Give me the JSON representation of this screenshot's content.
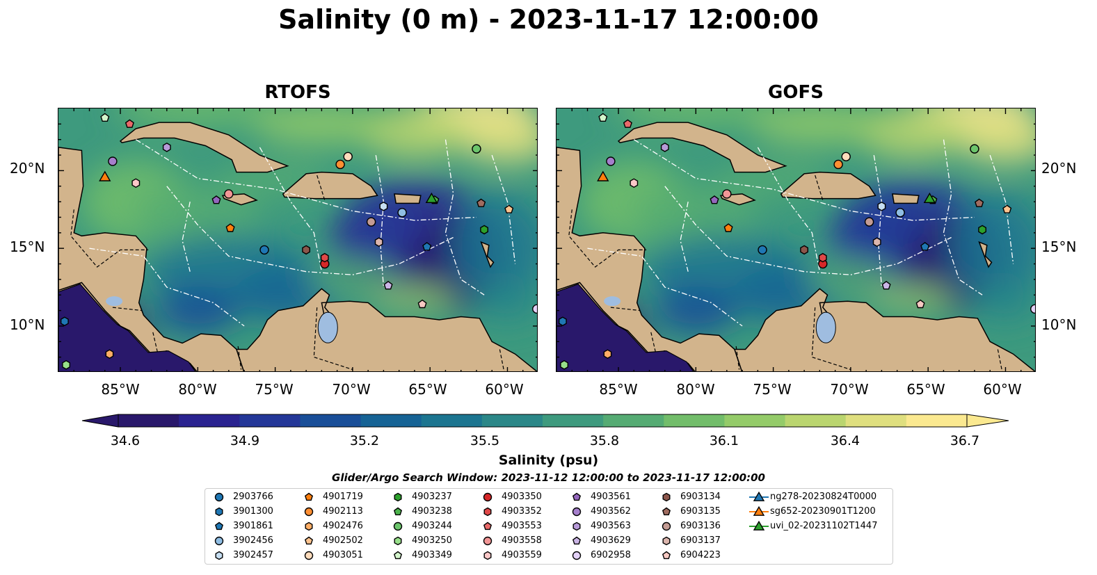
{
  "title": "Salinity (0 m) - 2023-11-17 12:00:00",
  "panels": [
    {
      "title": "RTOFS"
    },
    {
      "title": "GOFS"
    }
  ],
  "map_extent": {
    "lon": [
      -89,
      -58
    ],
    "lat": [
      7,
      24
    ]
  },
  "lat_labels": [
    "20°N",
    "15°N",
    "10°N"
  ],
  "lon_labels": [
    "85°W",
    "80°W",
    "75°W",
    "70°W",
    "65°W",
    "60°W"
  ],
  "colorbar": {
    "label": "Salinity (psu)",
    "min": 34.5,
    "max": 36.8,
    "ticks": [
      "34.6",
      "34.9",
      "35.2",
      "35.5",
      "35.8",
      "36.1",
      "36.4",
      "36.7"
    ],
    "colors": [
      "#29186b",
      "#2a2390",
      "#243798",
      "#194e98",
      "#166395",
      "#1c7590",
      "#2b8788",
      "#3e9a7e",
      "#55ab73",
      "#72bd6a",
      "#94cb69",
      "#bad56f",
      "#dfdf7f",
      "#fbe990"
    ]
  },
  "search_window": "Glider/Argo Search Window: 2023-11-12 12:00:00 to 2023-11-17 12:00:00",
  "land_color": "#d2b48c",
  "legend": [
    {
      "label": "2903766",
      "color": "#1f77b4",
      "marker": "circle"
    },
    {
      "label": "3901300",
      "color": "#1f77b4",
      "marker": "hexagon"
    },
    {
      "label": "3901861",
      "color": "#1f77b4",
      "marker": "pentagon"
    },
    {
      "label": "3902456",
      "color": "#8fbde3",
      "marker": "circle"
    },
    {
      "label": "3902457",
      "color": "#c6def2",
      "marker": "hexagon"
    },
    {
      "label": "4901719",
      "color": "#ff7f0e",
      "marker": "pentagon"
    },
    {
      "label": "4902113",
      "color": "#ff8f33",
      "marker": "circle"
    },
    {
      "label": "4902476",
      "color": "#ffae66",
      "marker": "hexagon"
    },
    {
      "label": "4902502",
      "color": "#ffc48f",
      "marker": "pentagon"
    },
    {
      "label": "4903051",
      "color": "#ffdcbc",
      "marker": "circle"
    },
    {
      "label": "4903237",
      "color": "#2ca02c",
      "marker": "hexagon"
    },
    {
      "label": "4903238",
      "color": "#4cb34c",
      "marker": "pentagon"
    },
    {
      "label": "4903244",
      "color": "#6cc56c",
      "marker": "circle"
    },
    {
      "label": "4903250",
      "color": "#98df8a",
      "marker": "hexagon"
    },
    {
      "label": "4903349",
      "color": "#d4f5cc",
      "marker": "pentagon"
    },
    {
      "label": "4903350",
      "color": "#d62728",
      "marker": "circle"
    },
    {
      "label": "4903352",
      "color": "#e04848",
      "marker": "hexagon"
    },
    {
      "label": "4903553",
      "color": "#ea6a6a",
      "marker": "pentagon"
    },
    {
      "label": "4903558",
      "color": "#f29696",
      "marker": "circle"
    },
    {
      "label": "4903559",
      "color": "#fcc8c8",
      "marker": "hexagon"
    },
    {
      "label": "4903561",
      "color": "#9467bd",
      "marker": "pentagon"
    },
    {
      "label": "4903562",
      "color": "#a57fcc",
      "marker": "circle"
    },
    {
      "label": "4903563",
      "color": "#b79ad8",
      "marker": "hexagon"
    },
    {
      "label": "4903629",
      "color": "#cbb5e6",
      "marker": "pentagon"
    },
    {
      "label": "6902958",
      "color": "#e4d2f8",
      "marker": "circle"
    },
    {
      "label": "6903134",
      "color": "#8c564b",
      "marker": "hexagon"
    },
    {
      "label": "6903135",
      "color": "#a06c60",
      "marker": "pentagon"
    },
    {
      "label": "6903136",
      "color": "#c49c94",
      "marker": "circle"
    },
    {
      "label": "6903137",
      "color": "#dbb5ad",
      "marker": "hexagon"
    },
    {
      "label": "6904223",
      "color": "#f7c9c2",
      "marker": "pentagon"
    },
    {
      "label": "ng278-20230824T0000",
      "color": "#1f77b4",
      "marker": "triangle"
    },
    {
      "label": "sg652-20230901T1200",
      "color": "#ff7f0e",
      "marker": "triangle"
    },
    {
      "label": "uvi_02-20231102T1447",
      "color": "#2ca02c",
      "marker": "triangle"
    }
  ],
  "observations": [
    {
      "id": "2903766",
      "lon": -75.7,
      "lat": 14.9
    },
    {
      "id": "3901300",
      "lon": -88.6,
      "lat": 10.3
    },
    {
      "id": "3901861",
      "lon": -65.2,
      "lat": 15.1
    },
    {
      "id": "3902456",
      "lon": -66.8,
      "lat": 17.3
    },
    {
      "id": "3902457",
      "lon": -68.0,
      "lat": 17.7
    },
    {
      "id": "4901719",
      "lon": -77.9,
      "lat": 16.3
    },
    {
      "id": "4902113",
      "lon": -70.8,
      "lat": 20.4
    },
    {
      "id": "4902476",
      "lon": -85.7,
      "lat": 8.2
    },
    {
      "id": "4902502",
      "lon": -59.9,
      "lat": 17.5
    },
    {
      "id": "4903051",
      "lon": -70.3,
      "lat": 20.9
    },
    {
      "id": "4903237",
      "lon": -61.5,
      "lat": 16.2
    },
    {
      "id": "4903238",
      "lon": -64.7,
      "lat": 18.1
    },
    {
      "id": "4903244",
      "lon": -62.0,
      "lat": 21.4
    },
    {
      "id": "4903250",
      "lon": -88.5,
      "lat": 7.5
    },
    {
      "id": "4903349",
      "lon": -86.0,
      "lat": 23.4
    },
    {
      "id": "4903350",
      "lon": -71.8,
      "lat": 14.0
    },
    {
      "id": "4903352",
      "lon": -71.8,
      "lat": 14.4
    },
    {
      "id": "4903553",
      "lon": -84.4,
      "lat": 23.0
    },
    {
      "id": "4903558",
      "lon": -78.0,
      "lat": 18.5
    },
    {
      "id": "4903559",
      "lon": -84.0,
      "lat": 19.2
    },
    {
      "id": "4903561",
      "lon": -78.8,
      "lat": 18.1
    },
    {
      "id": "4903562",
      "lon": -85.5,
      "lat": 20.6
    },
    {
      "id": "4903563",
      "lon": -82.0,
      "lat": 21.5
    },
    {
      "id": "4903629",
      "lon": -67.7,
      "lat": 12.6
    },
    {
      "id": "6902958",
      "lon": -58.1,
      "lat": 11.1
    },
    {
      "id": "6903134",
      "lon": -73.0,
      "lat": 14.9
    },
    {
      "id": "6903135",
      "lon": -61.7,
      "lat": 17.9
    },
    {
      "id": "6903136",
      "lon": -68.8,
      "lat": 16.7
    },
    {
      "id": "6903137",
      "lon": -68.3,
      "lat": 15.4
    },
    {
      "id": "6904223",
      "lon": -65.5,
      "lat": 11.4
    },
    {
      "id": "sg652-20230901T1200",
      "lon": -86.0,
      "lat": 19.6
    },
    {
      "id": "uvi_02-20231102T1447",
      "lon": -64.9,
      "lat": 18.2
    }
  ]
}
